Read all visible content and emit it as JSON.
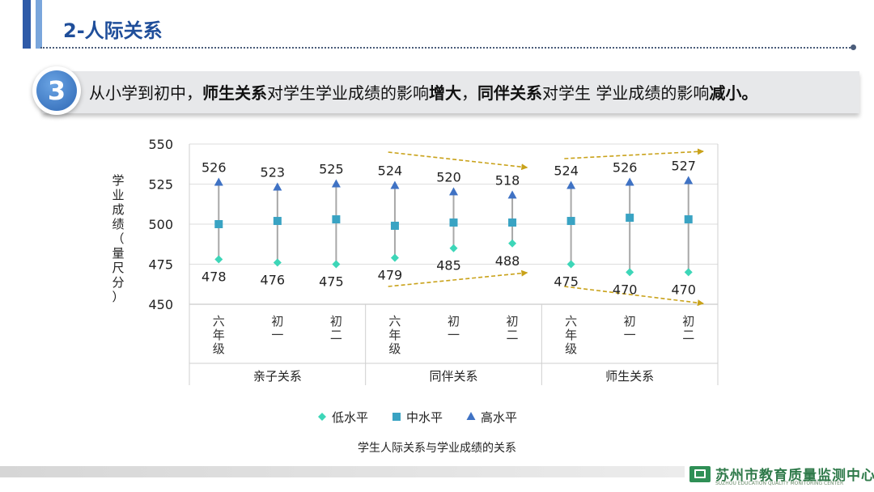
{
  "header": {
    "title": "2-人际关系"
  },
  "banner": {
    "number": "3",
    "t1": "从小学到初中，",
    "b1": "师生关系",
    "t2": "对学生学业成绩的影响",
    "b2": "增大",
    "t3": "，",
    "b3": "同伴关系",
    "t4": "对学生  学业成绩的影响",
    "b4": "减小。"
  },
  "chart_data": {
    "type": "scatter",
    "title": "学生人际关系与学业成绩的关系",
    "ylabel_chars": [
      "学",
      "业",
      "成",
      "绩",
      "（",
      "量",
      "尺",
      "分",
      "）"
    ],
    "ylim": [
      450,
      550
    ],
    "yticks": [
      450,
      475,
      500,
      525,
      550
    ],
    "groups": [
      {
        "name": "亲子关系",
        "categories": [
          "六年级",
          "初一",
          "初二"
        ]
      },
      {
        "name": "同伴关系",
        "categories": [
          "六年级",
          "初一",
          "初二"
        ]
      },
      {
        "name": "师生关系",
        "categories": [
          "六年级",
          "初一",
          "初二"
        ]
      }
    ],
    "series": [
      {
        "name": "低水平",
        "color": "#3dd6b8",
        "marker": "diamond",
        "values": [
          478,
          476,
          475,
          479,
          485,
          488,
          475,
          470,
          470
        ]
      },
      {
        "name": "中水平",
        "color": "#39a3c3",
        "marker": "square",
        "values": [
          500,
          502,
          503,
          499,
          501,
          501,
          502,
          504,
          503
        ]
      },
      {
        "name": "高水平",
        "color": "#3f72c4",
        "marker": "triangle",
        "values": [
          526,
          523,
          525,
          524,
          520,
          518,
          524,
          526,
          527
        ]
      }
    ],
    "low_labels": [
      "478",
      "476",
      "475",
      "479",
      "485",
      "488",
      "475",
      "470",
      "470"
    ],
    "high_labels": [
      "526",
      "523",
      "525",
      "524",
      "520",
      "518",
      "524",
      "526",
      "527"
    ],
    "trend_color": "#c9a21a",
    "trend_arrows": [
      {
        "group": "同伴关系",
        "level": "高水平",
        "direction": "down"
      },
      {
        "group": "同伴关系",
        "level": "低水平",
        "direction": "up"
      },
      {
        "group": "师生关系",
        "level": "高水平",
        "direction": "up"
      },
      {
        "group": "师生关系",
        "level": "低水平",
        "direction": "down"
      }
    ]
  },
  "footer": {
    "org": "苏州市教育质量监测中心",
    "org_en": "SUZHOU EDUCATION QUALITY MONITORING CENTER"
  }
}
